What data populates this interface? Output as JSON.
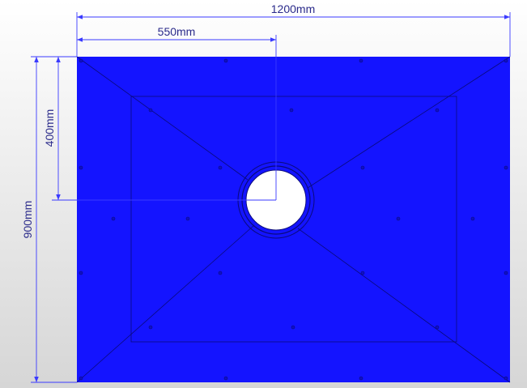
{
  "colors": {
    "panel": "#1414ff",
    "panel_lines": "#0a0a7a",
    "dimension": "#3a3aff",
    "dimension_text": "#2a2a8a",
    "background_top": "#ffffff",
    "background_bottom": "#d6d6d6"
  },
  "dimensions": {
    "width": "1200mm",
    "height": "900mm",
    "hole_x": "550mm",
    "hole_y": "400mm"
  }
}
